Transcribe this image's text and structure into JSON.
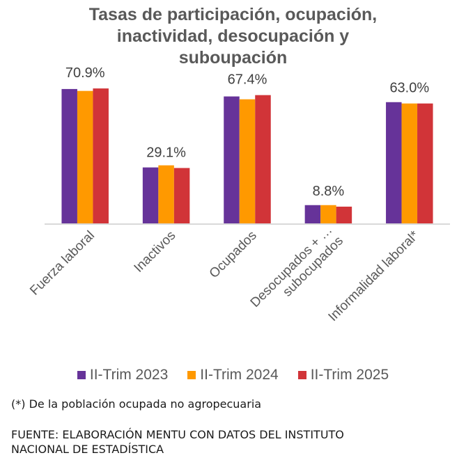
{
  "chart_data": {
    "type": "bar",
    "title": "Tasas de participación, ocupación,\ninactividad, desocupación y\nsuboupación",
    "xlabel": "",
    "ylabel": "",
    "ylim": [
      0,
      80
    ],
    "grid": false,
    "legend_position": "bottom",
    "categories": [
      [
        "Fuerza laboral"
      ],
      [
        "Inactivos"
      ],
      [
        "Ocupados"
      ],
      [
        "Desocupados + …",
        "subocupados"
      ],
      [
        "Informalidad laboral*"
      ]
    ],
    "series": [
      {
        "name": "II-Trim 2023",
        "color": "#663399",
        "values": [
          70.6,
          29.4,
          66.7,
          9.6,
          63.7
        ]
      },
      {
        "name": "II-Trim 2024",
        "color": "#FF9900",
        "values": [
          69.6,
          30.5,
          65.2,
          9.6,
          63.0
        ]
      },
      {
        "name": "II-Trim 2025",
        "color": "#D13438",
        "values": [
          70.9,
          29.1,
          67.4,
          8.8,
          63.0
        ]
      }
    ],
    "data_labels": [
      {
        "series": 2,
        "category": 0,
        "text": "70.9%"
      },
      {
        "series": 2,
        "category": 1,
        "text": "29.1%"
      },
      {
        "series": 2,
        "category": 2,
        "text": "67.4%"
      },
      {
        "series": 2,
        "category": 3,
        "text": "8.8%"
      },
      {
        "series": 2,
        "category": 4,
        "text": "63.0%"
      }
    ]
  },
  "footnote": "(*) De la población ocupada no agropecuaria",
  "source": "FUENTE: ELABORACIÓN MENTU CON DATOS DEL INSTITUTO\nNACIONAL DE ESTADÍSTICA"
}
